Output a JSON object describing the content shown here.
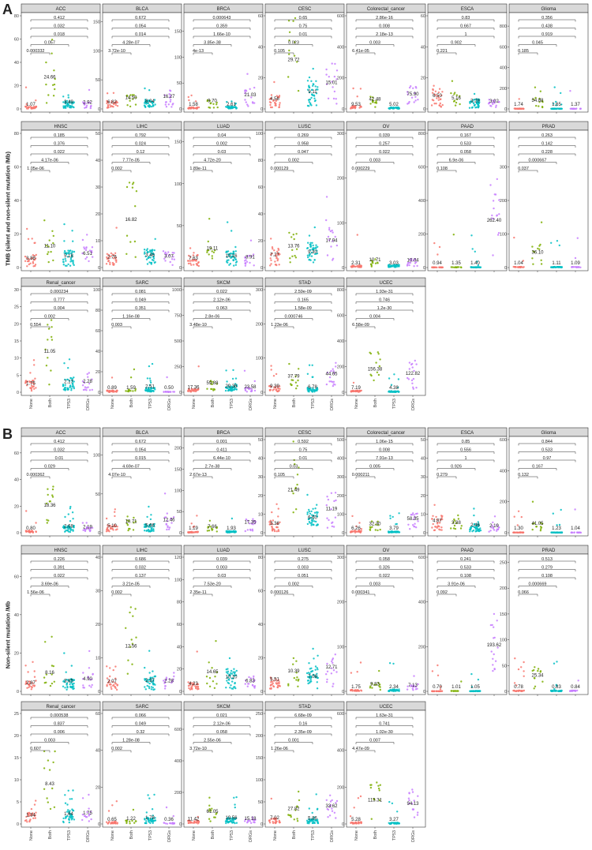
{
  "parts": [
    {
      "letter": "A",
      "ylabel": "TMB (silent and non-silent mutation /Mb)"
    },
    {
      "letter": "B",
      "ylabel": "Non-silent mutation /Mb"
    }
  ],
  "groups": [
    "None",
    "Both",
    "TP53",
    "DRGs"
  ],
  "colors": {
    "None": "#f8766d",
    "Both": "#7cae00",
    "TP53": "#00bfc4",
    "DRGs": "#c77cff",
    "strip": "#d9d9d9",
    "frame": "#333333"
  },
  "chart_data": [
    {
      "type": "scatter",
      "part": "A",
      "title": "ACC",
      "ylim": [
        0,
        80
      ],
      "yticks": [
        0,
        20,
        40,
        60,
        80
      ],
      "means": [
        1.07,
        24.66,
        3.49,
        2.92
      ],
      "pvalues": [
        "0.000332",
        "0.057",
        "0.018",
        "0.032",
        "0.412"
      ]
    },
    {
      "type": "scatter",
      "part": "A",
      "title": "BLCA",
      "ylim": [
        0,
        160
      ],
      "yticks": [
        0,
        50,
        100,
        150
      ],
      "means": [
        6.82,
        14.5,
        8.04,
        16.27
      ],
      "pvalues": [
        "3.72e-10",
        "4.28e-07",
        "0.014",
        "0.054",
        "0.672"
      ]
    },
    {
      "type": "scatter",
      "part": "A",
      "title": "BRCA",
      "ylim": [
        0,
        180
      ],
      "yticks": [
        0,
        50,
        100,
        150
      ],
      "means": [
        1.58,
        9.7,
        2.61,
        21.03
      ],
      "pvalues": [
        "4e-13",
        "3.85e-38",
        "1.66e-10",
        "0.359",
        "0.000643"
      ]
    },
    {
      "type": "scatter",
      "part": "A",
      "title": "CESC",
      "ylim": [
        0,
        60
      ],
      "yticks": [
        0,
        20,
        40,
        60
      ],
      "means": [
        4.56,
        29.72,
        9.11,
        15.01
      ],
      "pvalues": [
        "0.105",
        "0.023",
        "0.01",
        "0.75",
        "0.65"
      ]
    },
    {
      "type": "scatter",
      "part": "A",
      "title": "Colorectal_cancer",
      "ylim": [
        0,
        600
      ],
      "yticks": [
        0,
        200,
        400,
        600
      ],
      "means": [
        9.53,
        42.48,
        5.02,
        75.9
      ],
      "pvalues": [
        "6.41e-05",
        "0.003",
        "2.18e-13",
        "0.008",
        "2.86e-16"
      ]
    },
    {
      "type": "scatter",
      "part": "A",
      "title": "ESCA",
      "ylim": [
        0,
        60
      ],
      "yticks": [
        0,
        20,
        40,
        60
      ],
      "means": [
        6.5,
        5.16,
        3.29,
        3.02
      ],
      "pvalues": [
        "0.221",
        "0.902",
        "1",
        "0.667",
        "0.83"
      ]
    },
    {
      "type": "scatter",
      "part": "A",
      "title": "Glioma",
      "ylim": [
        0,
        900
      ],
      "yticks": [
        0,
        200,
        400,
        600,
        800
      ],
      "means": [
        1.74,
        54.88,
        1.65,
        1.37
      ],
      "pvalues": [
        "0.185",
        "0.045",
        "0.919",
        "0.438",
        "0.356"
      ]
    },
    {
      "type": "scatter",
      "part": "A",
      "title": "HNSC",
      "ylim": [
        0,
        80
      ],
      "yticks": [
        0,
        20,
        40,
        60,
        80
      ],
      "means": [
        3.88,
        11.1,
        5.18,
        6.51
      ],
      "pvalues": [
        "1.05e-06",
        "4.17e-06",
        "0.022",
        "0.376",
        "0.185"
      ]
    },
    {
      "type": "scatter",
      "part": "A",
      "title": "LIHC",
      "ylim": [
        0,
        50
      ],
      "yticks": [
        0,
        10,
        20,
        30,
        40,
        50
      ],
      "means": [
        2.76,
        16.82,
        3.46,
        3.07
      ],
      "pvalues": [
        "0.002",
        "7.77e-05",
        "0.12",
        "0.024",
        "0.792"
      ]
    },
    {
      "type": "scatter",
      "part": "A",
      "title": "LUAD",
      "ylim": [
        0,
        160
      ],
      "yticks": [
        0,
        50,
        100,
        150
      ],
      "means": [
        7.63,
        19.11,
        10.16,
        8.91
      ],
      "pvalues": [
        "1.89e-11",
        "4.72e-20",
        "0.03",
        "0.002",
        "0.04"
      ]
    },
    {
      "type": "scatter",
      "part": "A",
      "title": "LUSC",
      "ylim": [
        0,
        100
      ],
      "yticks": [
        0,
        20,
        40,
        60,
        80,
        100
      ],
      "means": [
        7.27,
        13.76,
        9.3,
        17.94
      ],
      "pvalues": [
        "0.000129",
        "0.002",
        "0.047",
        "0.958",
        "0.269"
      ]
    },
    {
      "type": "scatter",
      "part": "A",
      "title": "OV",
      "ylim": [
        0,
        300
      ],
      "yticks": [
        0,
        100,
        200,
        300
      ],
      "means": [
        2.31,
        10.71,
        3.03,
        10.04
      ],
      "pvalues": [
        "0.000229",
        "0.003",
        "0.022",
        "0.257",
        "0.039"
      ]
    },
    {
      "type": "scatter",
      "part": "A",
      "title": "PAAD",
      "ylim": [
        0,
        800
      ],
      "yticks": [
        0,
        200,
        400,
        600,
        800
      ],
      "means": [
        0.94,
        1.35,
        1.4,
        262.4
      ],
      "pvalues": [
        "0.108",
        "6.9e-06",
        "0.058",
        "0.533",
        "0.167"
      ]
    },
    {
      "type": "scatter",
      "part": "A",
      "title": "PRAD",
      "ylim": [
        0,
        400
      ],
      "yticks": [
        0,
        100,
        200,
        300
      ],
      "means": [
        1.04,
        36.1,
        1.11,
        1.09
      ],
      "pvalues": [
        "0.037",
        "0.000667",
        "0.228",
        "0.142",
        "0.263"
      ]
    },
    {
      "type": "scatter",
      "part": "A",
      "title": "Renal_cancer",
      "ylim": [
        0,
        30
      ],
      "yticks": [
        0,
        5,
        10,
        15,
        20,
        25,
        30
      ],
      "means": [
        1.75,
        11.05,
        2.17,
        2.28
      ],
      "pvalues": [
        "0.554",
        "0.002",
        "0.004",
        "0.777",
        "0.000234"
      ]
    },
    {
      "type": "scatter",
      "part": "A",
      "title": "SARC",
      "ylim": [
        0,
        100
      ],
      "yticks": [
        0,
        20,
        40,
        60,
        80,
        100
      ],
      "means": [
        0.89,
        1.59,
        2.51,
        0.5
      ],
      "pvalues": [
        "0.003",
        "1.16e-08",
        "0.351",
        "0.049",
        "0.081"
      ]
    },
    {
      "type": "scatter",
      "part": "A",
      "title": "SKCM",
      "ylim": [
        0,
        1000
      ],
      "yticks": [
        0,
        250,
        500,
        750,
        1000
      ],
      "means": [
        17.36,
        59.88,
        29.36,
        23.58
      ],
      "pvalues": [
        "3.48e-10",
        "2.8e-06",
        "0.063",
        "2.12e-06",
        "0.022"
      ]
    },
    {
      "type": "scatter",
      "part": "A",
      "title": "STAD",
      "ylim": [
        0,
        300
      ],
      "yticks": [
        0,
        100,
        200,
        300
      ],
      "means": [
        9.39,
        37.79,
        6.78,
        44.65
      ],
      "pvalues": [
        "1.23e-06",
        "0.000746",
        "1.58e-09",
        "0.165",
        "2.59e-09"
      ]
    },
    {
      "type": "scatter",
      "part": "A",
      "title": "UCEC",
      "ylim": [
        0,
        800
      ],
      "yticks": [
        0,
        200,
        400,
        600,
        800
      ],
      "means": [
        7.19,
        156.38,
        4.38,
        122.82
      ],
      "pvalues": [
        "6.58e-09",
        "0.004",
        "1.2e-30",
        "0.746",
        "1.93e-31"
      ]
    },
    {
      "type": "scatter",
      "part": "B",
      "title": "ACC",
      "ylim": [
        0,
        70
      ],
      "yticks": [
        0,
        20,
        40,
        60
      ],
      "means": [
        0.8,
        18.36,
        2.68,
        2.19
      ],
      "pvalues": [
        "0.000362",
        "0.029",
        "0.01",
        "0.032",
        "0.412"
      ]
    },
    {
      "type": "scatter",
      "part": "B",
      "title": "BLCA",
      "ylim": [
        0,
        120
      ],
      "yticks": [
        0,
        50,
        100
      ],
      "means": [
        5.1,
        10.71,
        5.66,
        12.46
      ],
      "pvalues": [
        "4.07e-10",
        "4.69e-07",
        "0.015",
        "0.054",
        "0.672"
      ]
    },
    {
      "type": "scatter",
      "part": "B",
      "title": "BRCA",
      "ylim": [
        0,
        220
      ],
      "yticks": [
        0,
        50,
        100,
        150,
        200
      ],
      "means": [
        1.19,
        7.66,
        1.93,
        17.35
      ],
      "pvalues": [
        "2.67e-13",
        "2.7e-38",
        "6.44e-10",
        "0.411",
        "0.001"
      ]
    },
    {
      "type": "scatter",
      "part": "B",
      "title": "CESC",
      "ylim": [
        0,
        50
      ],
      "yticks": [
        0,
        10,
        20,
        30,
        40,
        50
      ],
      "means": [
        3.36,
        21.49,
        6.6,
        11.19
      ],
      "pvalues": [
        "0.105",
        "0.03",
        "0.01",
        "0.75",
        "0.592"
      ]
    },
    {
      "type": "scatter",
      "part": "B",
      "title": "Colorectal_cancer",
      "ylim": [
        0,
        500
      ],
      "yticks": [
        0,
        100,
        200,
        300,
        400,
        500
      ],
      "means": [
        6.26,
        32.3,
        3.79,
        58.35
      ],
      "pvalues": [
        "0.000211",
        "0.005",
        "7.91e-13",
        "0.008",
        "1.06e-15"
      ]
    },
    {
      "type": "scatter",
      "part": "B",
      "title": "ESCA",
      "ylim": [
        0,
        50
      ],
      "yticks": [
        0,
        10,
        20,
        30,
        40,
        50
      ],
      "means": [
        4.87,
        3.88,
        2.46,
        2.19
      ],
      "pvalues": [
        "0.279",
        "0.926",
        "1",
        "0.556",
        "0.85"
      ]
    },
    {
      "type": "scatter",
      "part": "B",
      "title": "Glioma",
      "ylim": [
        0,
        600
      ],
      "yticks": [
        0,
        200,
        400,
        600
      ],
      "means": [
        1.3,
        41.05,
        1.23,
        1.04
      ],
      "pvalues": [
        "0.132",
        "0.167",
        "0.97",
        "0.533",
        "0.844"
      ]
    },
    {
      "type": "scatter",
      "part": "B",
      "title": "HNSC",
      "ylim": [
        0,
        70
      ],
      "yticks": [
        0,
        20,
        40,
        60
      ],
      "means": [
        2.87,
        8.16,
        3.85,
        4.9
      ],
      "pvalues": [
        "1.56e-06",
        "3.69e-06",
        "0.022",
        "0.391",
        "0.226"
      ]
    },
    {
      "type": "scatter",
      "part": "B",
      "title": "LIHC",
      "ylim": [
        0,
        40
      ],
      "yticks": [
        0,
        10,
        20,
        30,
        40
      ],
      "means": [
        2.07,
        12.56,
        2.37,
        2.28
      ],
      "pvalues": [
        "0.002",
        "3.21e-05",
        "0.137",
        "0.032",
        "0.686"
      ]
    },
    {
      "type": "scatter",
      "part": "B",
      "title": "LUAD",
      "ylim": [
        0,
        120
      ],
      "yticks": [
        0,
        20,
        40,
        60,
        80,
        100,
        120
      ],
      "means": [
        4.23,
        14.65,
        10.1,
        6.83
      ],
      "pvalues": [
        "2.35e-11",
        "7.53e-20",
        "0.03",
        "0.003",
        "0.039"
      ]
    },
    {
      "type": "scatter",
      "part": "B",
      "title": "LUSC",
      "ylim": [
        0,
        80
      ],
      "yticks": [
        0,
        20,
        40,
        60,
        80
      ],
      "means": [
        5.51,
        10.39,
        7.06,
        12.71
      ],
      "pvalues": [
        "0.000126",
        "0.002",
        "0.051",
        "0.003",
        "0.275"
      ]
    },
    {
      "type": "scatter",
      "part": "B",
      "title": "OV",
      "ylim": [
        0,
        300
      ],
      "yticks": [
        0,
        100,
        200,
        300
      ],
      "means": [
        1.75,
        9.83,
        2.34,
        7.13
      ],
      "pvalues": [
        "0.000341",
        "0.003",
        "0.022",
        "0.326",
        "0.058"
      ]
    },
    {
      "type": "scatter",
      "part": "B",
      "title": "PAAD",
      "ylim": [
        0,
        600
      ],
      "yticks": [
        0,
        200,
        400,
        600
      ],
      "means": [
        0.7,
        1.01,
        1.05,
        193.62
      ],
      "pvalues": [
        "0.092",
        "3.91e-06",
        "0.108",
        "0.533",
        "0.241"
      ]
    },
    {
      "type": "scatter",
      "part": "B",
      "title": "PRAD",
      "ylim": [
        0,
        260
      ],
      "yticks": [
        0,
        50,
        100,
        150,
        200,
        250
      ],
      "means": [
        0.78,
        25.34,
        0.83,
        0.84
      ],
      "pvalues": [
        "0.066",
        "0.000669",
        "0.108",
        "0.279",
        "0.513"
      ]
    },
    {
      "type": "scatter",
      "part": "B",
      "title": "Renal_cancer",
      "ylim": [
        0,
        25
      ],
      "yticks": [
        0,
        5,
        10,
        15,
        20,
        25
      ],
      "means": [
        1.34,
        8.43,
        1.64,
        1.75
      ],
      "pvalues": [
        "0.607",
        "0.003",
        "0.006",
        "0.837",
        "0.000538"
      ]
    },
    {
      "type": "scatter",
      "part": "B",
      "title": "SARC",
      "ylim": [
        0,
        60
      ],
      "yticks": [
        0,
        20,
        40,
        60
      ],
      "means": [
        0.65,
        1.22,
        1.78,
        0.36
      ],
      "pvalues": [
        "0.002",
        "1.28e-08",
        "0.32",
        "0.049",
        "0.066"
      ]
    },
    {
      "type": "scatter",
      "part": "B",
      "title": "SKCM",
      "ylim": [
        0,
        700
      ],
      "yticks": [
        0,
        200,
        400,
        600
      ],
      "means": [
        11.42,
        61.05,
        19.56,
        15.18
      ],
      "pvalues": [
        "3.72e-10",
        "2.55e-06",
        "0.058",
        "2.12e-06",
        "0.021"
      ]
    },
    {
      "type": "scatter",
      "part": "B",
      "title": "STAD",
      "ylim": [
        0,
        250
      ],
      "yticks": [
        0,
        50,
        100,
        150,
        200,
        250
      ],
      "means": [
        7.02,
        27.82,
        5.86,
        33.62
      ],
      "pvalues": [
        "1.26e-06",
        "0.001",
        "2.35e-09",
        "0.16",
        "6.68e-09"
      ]
    },
    {
      "type": "scatter",
      "part": "B",
      "title": "UCEC",
      "ylim": [
        0,
        600
      ],
      "yticks": [
        0,
        200,
        400,
        600
      ],
      "means": [
        5.28,
        113.31,
        3.27,
        94.13
      ],
      "pvalues": [
        "4.47e-09",
        "0.007",
        "1.02e-30",
        "0.741",
        "1.63e-31"
      ]
    }
  ]
}
